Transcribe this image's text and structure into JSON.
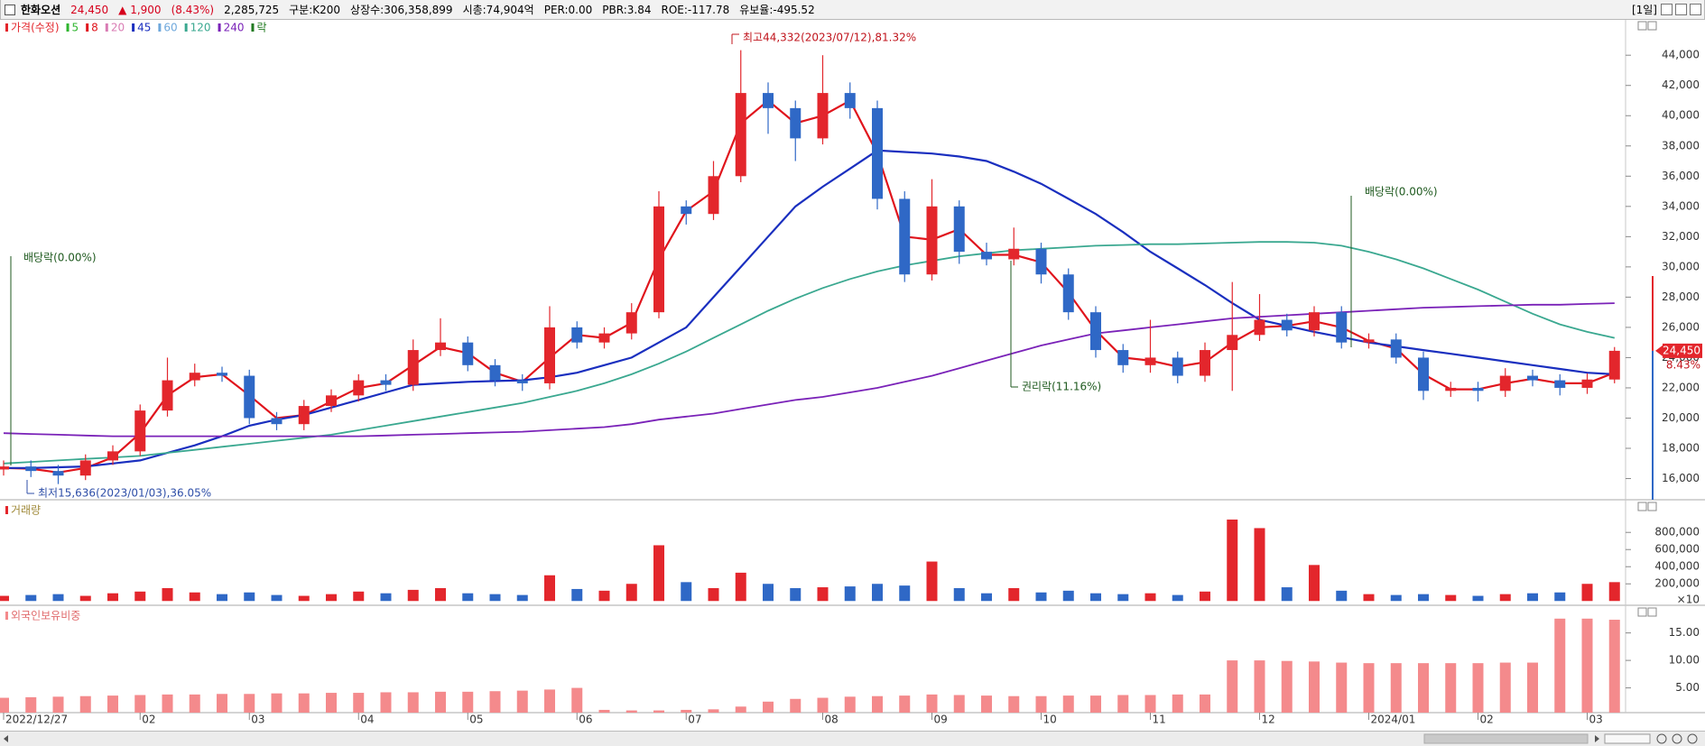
{
  "header": {
    "name": "한화오션",
    "price": "24,450",
    "change": "▲ 1,900",
    "change_pct": "(8.43%)",
    "volume": "2,285,725",
    "group": "구분:K200",
    "shares": "상장수:306,358,899",
    "market_cap": "시총:74,904억",
    "per": "PER:0.00",
    "pbr": "PBR:3.84",
    "roe": "ROE:-117.78",
    "reserve": "유보율:-495.52",
    "period": "[1일]"
  },
  "chart_data": [
    {
      "type": "candlestick",
      "categories": [
        "2022/12/27",
        null,
        null,
        null,
        null,
        "02",
        null,
        null,
        null,
        "03",
        null,
        null,
        null,
        "04",
        null,
        null,
        null,
        "05",
        null,
        null,
        null,
        "06",
        null,
        null,
        null,
        "07",
        null,
        null,
        null,
        null,
        "08",
        null,
        null,
        null,
        "09",
        null,
        null,
        null,
        "10",
        null,
        null,
        null,
        "11",
        null,
        null,
        null,
        "12",
        null,
        null,
        null,
        "2024/01",
        null,
        null,
        null,
        "02",
        null,
        null,
        null,
        "03",
        null
      ],
      "open": [
        16600,
        16800,
        16500,
        16200,
        17200,
        17800,
        20500,
        22500,
        23000,
        22800,
        20000,
        19600,
        20800,
        21500,
        22500,
        22200,
        24500,
        25000,
        23500,
        22500,
        22300,
        26000,
        25000,
        25600,
        27000,
        34000,
        33500,
        36000,
        41500,
        40500,
        38500,
        41500,
        40500,
        34500,
        29500,
        34000,
        31000,
        30500,
        31200,
        29500,
        27000,
        24500,
        23500,
        24000,
        22800,
        24500,
        25500,
        26500,
        25800,
        27000,
        25000,
        25200,
        24000,
        21800,
        22000,
        21800,
        22800,
        22500,
        22000,
        22550
      ],
      "high": [
        17200,
        17200,
        16900,
        17600,
        18200,
        20900,
        24000,
        23600,
        23400,
        23200,
        20400,
        21200,
        21900,
        22900,
        22900,
        25200,
        26600,
        25400,
        23900,
        22900,
        27400,
        26400,
        26000,
        27600,
        35000,
        34400,
        37000,
        44332,
        42200,
        41000,
        44000,
        42200,
        41000,
        35000,
        35800,
        34400,
        31600,
        32600,
        31600,
        29900,
        27400,
        24900,
        26500,
        24400,
        25000,
        29000,
        28200,
        26900,
        27400,
        27400,
        25600,
        25600,
        24400,
        22400,
        22400,
        23300,
        23200,
        22900,
        22950,
        24700
      ],
      "low": [
        16200,
        16100,
        15636,
        15900,
        16900,
        17500,
        20100,
        22100,
        22400,
        19600,
        19200,
        19200,
        20400,
        21100,
        21800,
        21800,
        24100,
        23100,
        22100,
        21800,
        21900,
        24600,
        24600,
        25200,
        26600,
        32800,
        33100,
        35600,
        38800,
        37000,
        38100,
        39800,
        33800,
        29000,
        29100,
        30200,
        30100,
        30100,
        28900,
        26500,
        24000,
        23000,
        23000,
        22300,
        22400,
        21800,
        25100,
        25400,
        25400,
        24600,
        24600,
        23600,
        21200,
        21400,
        21100,
        21400,
        22100,
        21500,
        21600,
        22300
      ],
      "close": [
        16800,
        16500,
        16200,
        17200,
        17800,
        20500,
        22500,
        23000,
        22800,
        20000,
        19600,
        20800,
        21500,
        22500,
        22200,
        24500,
        25000,
        23500,
        22500,
        22300,
        26000,
        25000,
        25600,
        27000,
        34000,
        33500,
        36000,
        41500,
        40500,
        38500,
        41500,
        40500,
        34500,
        29500,
        34000,
        31000,
        30500,
        31200,
        29500,
        27000,
        24500,
        23500,
        24000,
        22800,
        24500,
        25500,
        26500,
        25800,
        27000,
        25000,
        25200,
        24000,
        21800,
        22000,
        21800,
        22800,
        22500,
        22000,
        22550,
        24450
      ],
      "up_color": "#e3262c",
      "down_color": "#2f68c6",
      "ylim": [
        14600,
        46100
      ],
      "yticks": [
        {
          "value": 16000,
          "label": "16,000"
        },
        {
          "value": 18000,
          "label": "18,000"
        },
        {
          "value": 20000,
          "label": "20,000"
        },
        {
          "value": 22000,
          "label": "22,000"
        },
        {
          "value": 24000,
          "label": "24,000"
        },
        {
          "value": 26000,
          "label": "26,000"
        },
        {
          "value": 28000,
          "label": "28,000"
        },
        {
          "value": 30000,
          "label": "30,000"
        },
        {
          "value": 32000,
          "label": "32,000"
        },
        {
          "value": 34000,
          "label": "34,000"
        },
        {
          "value": 36000,
          "label": "36,000"
        },
        {
          "value": 38000,
          "label": "38,000"
        },
        {
          "value": 40000,
          "label": "40,000"
        },
        {
          "value": 42000,
          "label": "42,000"
        },
        {
          "value": 44000,
          "label": "44,000"
        }
      ],
      "series": [
        {
          "name": "가격(수정)",
          "color": "#e3262c"
        },
        {
          "name": "5",
          "color": "#2fb52f"
        },
        {
          "name": "8",
          "color": "#e0141c",
          "values": [
            16700,
            16650,
            16400,
            16700,
            17400,
            19000,
            21500,
            22700,
            22900,
            21500,
            20000,
            20200,
            21100,
            22000,
            22300,
            23500,
            24700,
            24300,
            23000,
            22400,
            24000,
            25500,
            25300,
            26300,
            30500,
            33700,
            35000,
            39500,
            41000,
            39500,
            40000,
            41000,
            37500,
            32000,
            31800,
            32500,
            30800,
            30800,
            30300,
            28300,
            25800,
            24000,
            23800,
            23400,
            23700,
            25000,
            26000,
            26100,
            26400,
            26000,
            25100,
            24600,
            22900,
            21900,
            21900,
            22300,
            22600,
            22300,
            22300,
            23000
          ]
        },
        {
          "name": "20",
          "color": "#d97cb4"
        },
        {
          "name": "45",
          "color": "#1a2fbf",
          "values": [
            16700,
            16700,
            16750,
            16800,
            17000,
            17200,
            17700,
            18200,
            18800,
            19500,
            19900,
            20200,
            20700,
            21200,
            21700,
            22200,
            22300,
            22400,
            22450,
            22500,
            22700,
            23000,
            23500,
            24000,
            25000,
            26000,
            28000,
            30000,
            32000,
            34000,
            35300,
            36500,
            37700,
            37600,
            37500,
            37300,
            37000,
            36300,
            35500,
            34500,
            33500,
            32300,
            31000,
            29900,
            28800,
            27600,
            26500,
            26100,
            25700,
            25350,
            25000,
            24750,
            24500,
            24250,
            24000,
            23750,
            23500,
            23250,
            23000,
            22900
          ]
        },
        {
          "name": "60",
          "color": "#6fa8dc"
        },
        {
          "name": "120",
          "color": "#3aa890",
          "values": [
            17000,
            17100,
            17200,
            17300,
            17400,
            17500,
            17700,
            17900,
            18100,
            18300,
            18500,
            18700,
            18900,
            19200,
            19500,
            19800,
            20100,
            20400,
            20700,
            21000,
            21400,
            21800,
            22300,
            22900,
            23600,
            24400,
            25300,
            26200,
            27100,
            27900,
            28600,
            29200,
            29700,
            30100,
            30400,
            30700,
            30900,
            31100,
            31200,
            31300,
            31400,
            31450,
            31500,
            31500,
            31550,
            31600,
            31650,
            31650,
            31600,
            31400,
            31000,
            30500,
            29900,
            29200,
            28500,
            27700,
            26900,
            26200,
            25700,
            25300
          ]
        },
        {
          "name": "240",
          "color": "#7a22b8",
          "values": [
            19000,
            18950,
            18900,
            18850,
            18800,
            18800,
            18800,
            18800,
            18800,
            18800,
            18800,
            18800,
            18800,
            18800,
            18850,
            18900,
            18950,
            19000,
            19050,
            19100,
            19200,
            19300,
            19400,
            19600,
            19900,
            20100,
            20300,
            20600,
            20900,
            21200,
            21400,
            21700,
            22000,
            22400,
            22800,
            23300,
            23800,
            24300,
            24800,
            25200,
            25600,
            25800,
            26000,
            26200,
            26400,
            26600,
            26700,
            26800,
            26900,
            27000,
            27100,
            27200,
            27300,
            27350,
            27400,
            27450,
            27500,
            27500,
            27550,
            27600
          ]
        },
        {
          "name": "락",
          "color": "#1f7a1f"
        }
      ],
      "annotations": [
        "최고44,332(2023/07/12),81.32%",
        "최저15,636(2023/01/03),36.05%",
        "배당락(0.00%)",
        "배당락(0.00%)",
        "권리락(11.16%)"
      ],
      "current_price": {
        "value": 24450,
        "label": "24,450"
      },
      "current_change": "8.43%"
    },
    {
      "type": "bar",
      "title": "거래량",
      "values": [
        60000,
        70000,
        80000,
        60000,
        90000,
        110000,
        150000,
        100000,
        80000,
        100000,
        70000,
        60000,
        80000,
        110000,
        90000,
        130000,
        150000,
        90000,
        80000,
        70000,
        300000,
        140000,
        120000,
        200000,
        650000,
        220000,
        150000,
        330000,
        200000,
        150000,
        160000,
        170000,
        200000,
        180000,
        460000,
        150000,
        90000,
        150000,
        100000,
        120000,
        90000,
        80000,
        90000,
        70000,
        110000,
        950000,
        850000,
        160000,
        420000,
        120000,
        80000,
        70000,
        80000,
        70000,
        60000,
        80000,
        90000,
        100000,
        200000,
        220000
      ],
      "ylim": [
        -50000,
        1160000
      ],
      "yticks": [
        {
          "value": 200000,
          "label": "200,000"
        },
        {
          "value": 400000,
          "label": "400,000"
        },
        {
          "value": 600000,
          "label": "600,000"
        },
        {
          "value": 800000,
          "label": "800,000"
        }
      ],
      "unit": "×10"
    },
    {
      "type": "bar",
      "title": "외국인보유비중",
      "color": "#f48a8c",
      "values": [
        3.2,
        3.3,
        3.4,
        3.5,
        3.6,
        3.7,
        3.8,
        3.8,
        3.9,
        3.9,
        4.0,
        4.0,
        4.1,
        4.1,
        4.2,
        4.2,
        4.3,
        4.3,
        4.4,
        4.5,
        4.7,
        5.0,
        1.0,
        0.9,
        0.9,
        1.0,
        1.1,
        1.6,
        2.5,
        3.0,
        3.2,
        3.4,
        3.5,
        3.6,
        3.8,
        3.7,
        3.6,
        3.5,
        3.5,
        3.6,
        3.6,
        3.7,
        3.7,
        3.8,
        3.8,
        10.0,
        10.0,
        9.9,
        9.8,
        9.6,
        9.5,
        9.5,
        9.5,
        9.5,
        9.5,
        9.6,
        9.6,
        17.6,
        17.6,
        17.4
      ],
      "ylim": [
        0.5,
        19.7
      ],
      "yticks": [
        {
          "value": 5,
          "label": "5.00"
        },
        {
          "value": 10,
          "label": "10.00"
        },
        {
          "value": 15,
          "label": "15.00"
        }
      ]
    }
  ]
}
